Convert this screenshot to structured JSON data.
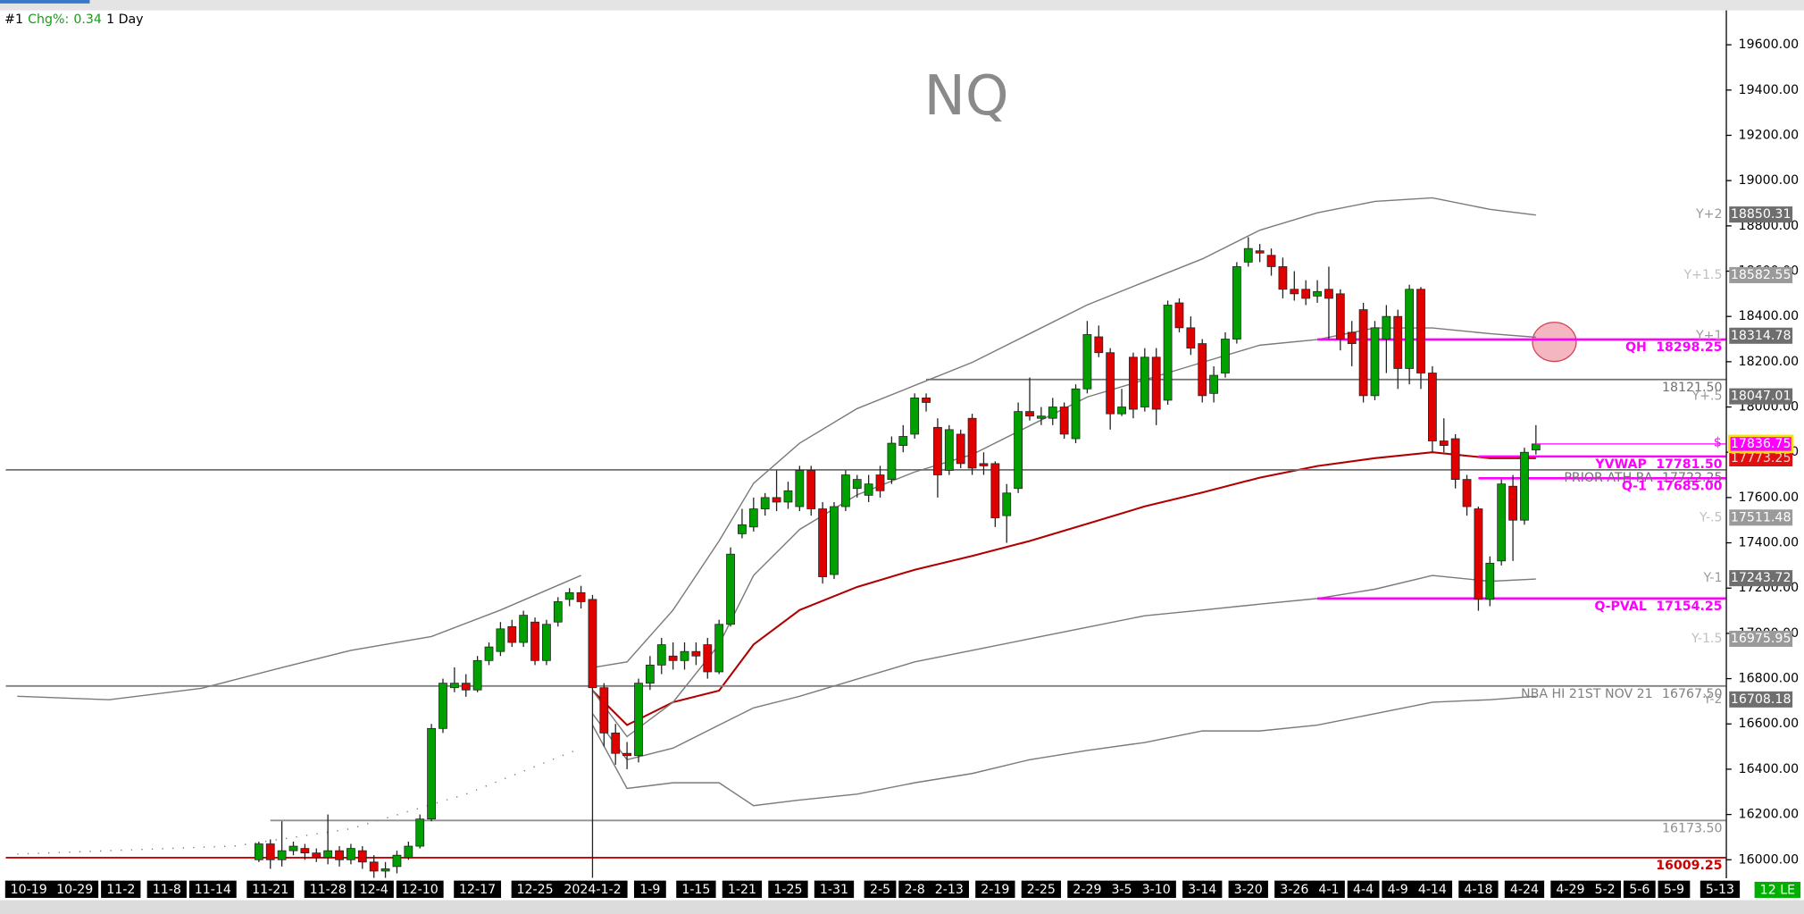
{
  "header": {
    "id": "#1",
    "change_label": "Chg%:",
    "change": 0.34,
    "interval": "1 Day"
  },
  "footer": {
    "badge": "12 LE"
  },
  "chart_data": {
    "type": "candlestick",
    "title": "NQ",
    "up_color": "#00a000",
    "down_color": "#e00000",
    "ylim": [
      15918,
      19747
    ],
    "yticks": [
      {
        "value": 16000,
        "label": "16000.00"
      },
      {
        "value": 16200,
        "label": "16200.00"
      },
      {
        "value": 16400,
        "label": "16400.00"
      },
      {
        "value": 16600,
        "label": "16600.00"
      },
      {
        "value": 16800,
        "label": "16800.00"
      },
      {
        "value": 17000,
        "label": "17000.00"
      },
      {
        "value": 17200,
        "label": "17200.00"
      },
      {
        "value": 17400,
        "label": "17400.00"
      },
      {
        "value": 17600,
        "label": "17600.00"
      },
      {
        "value": 17800,
        "label": "17800.00"
      },
      {
        "value": 18000,
        "label": "18000.00"
      },
      {
        "value": 18200,
        "label": "18200.00"
      },
      {
        "value": 18400,
        "label": "18400.00"
      },
      {
        "value": 18600,
        "label": "18600.00"
      },
      {
        "value": 18800,
        "label": "18800.00"
      },
      {
        "value": 19000,
        "label": "19000.00"
      },
      {
        "value": 19200,
        "label": "19200.00"
      },
      {
        "value": 19400,
        "label": "19400.00"
      },
      {
        "value": 19600,
        "label": "19600.00"
      }
    ],
    "categories": [
      null,
      null,
      "10-19",
      null,
      null,
      null,
      "10-29",
      null,
      null,
      null,
      "11-2",
      null,
      null,
      null,
      "11-8",
      null,
      null,
      null,
      "11-14",
      null,
      null,
      null,
      null,
      "11-21",
      null,
      null,
      null,
      null,
      "11-28",
      null,
      null,
      null,
      "12-4",
      null,
      null,
      null,
      "12-10",
      null,
      null,
      null,
      null,
      "12-17",
      null,
      null,
      null,
      null,
      "12-25",
      null,
      null,
      null,
      null,
      "2024-1-2",
      null,
      null,
      null,
      null,
      "1-9",
      null,
      null,
      null,
      "1-15",
      null,
      null,
      null,
      "1-21",
      null,
      null,
      null,
      "1-25",
      null,
      null,
      null,
      "1-31",
      null,
      null,
      null,
      "2-5",
      null,
      null,
      "2-8",
      null,
      null,
      "2-13",
      null,
      null,
      null,
      "2-19",
      null,
      null,
      null,
      "2-25",
      null,
      null,
      null,
      "2-29",
      null,
      null,
      "3-5",
      null,
      null,
      "3-10",
      null,
      null,
      null,
      "3-14",
      null,
      null,
      null,
      "3-20",
      null,
      null,
      null,
      "3-26",
      null,
      null,
      "4-1",
      null,
      null,
      "4-4",
      null,
      null,
      "4-9",
      null,
      null,
      "4-14",
      null,
      null,
      null,
      "4-18",
      null,
      null,
      null,
      "4-24",
      null,
      null,
      null,
      "4-29",
      null,
      null,
      "5-2",
      null,
      null,
      "5-6",
      null,
      null,
      "5-9",
      null,
      null,
      null,
      "5-13"
    ],
    "open": [
      null,
      null,
      null,
      null,
      null,
      null,
      null,
      null,
      null,
      null,
      null,
      null,
      null,
      null,
      null,
      null,
      null,
      null,
      null,
      null,
      null,
      null,
      16000,
      16070,
      16000,
      16040,
      16050,
      16030,
      16010,
      16040,
      16000,
      16040,
      15990,
      15950,
      15970,
      16010,
      16060,
      16180,
      16580,
      16760,
      16780,
      16750,
      16880,
      16920,
      17030,
      16960,
      17050,
      16880,
      17050,
      17150,
      17180,
      17150,
      16760,
      16560,
      16470,
      16460,
      16780,
      16860,
      16900,
      16880,
      16920,
      16950,
      16830,
      17040,
      17440,
      17470,
      17550,
      17600,
      17580,
      17560,
      17720,
      17550,
      17260,
      17560,
      17640,
      17610,
      17700,
      17680,
      17830,
      17880,
      18040,
      17910,
      17720,
      17880,
      17950,
      17750,
      17750,
      17520,
      17640,
      17980,
      17950,
      17950,
      18000,
      17860,
      18080,
      18310,
      18240,
      17970,
      18220,
      18000,
      18220,
      18030,
      18460,
      18350,
      18280,
      18060,
      18150,
      18300,
      18640,
      18690,
      18670,
      18620,
      18520,
      18520,
      18490,
      18520,
      18500,
      18330,
      18430,
      18050,
      18300,
      18400,
      18170,
      18520,
      18150,
      17850,
      17860,
      17680,
      17550,
      17150,
      17320,
      17650,
      17500,
      17810,
      null,
      null,
      null,
      null,
      null,
      null,
      null,
      null,
      null,
      null,
      null,
      null,
      null,
      null,
      null,
      null
    ],
    "high": [
      null,
      null,
      null,
      null,
      null,
      null,
      null,
      null,
      null,
      null,
      null,
      null,
      null,
      null,
      null,
      null,
      null,
      null,
      null,
      null,
      null,
      null,
      16080,
      16090,
      16170,
      16080,
      16070,
      16050,
      16200,
      16060,
      16070,
      16060,
      16020,
      15990,
      16040,
      16080,
      16200,
      16600,
      16800,
      16850,
      16820,
      16900,
      16960,
      17050,
      17060,
      17100,
      17070,
      17060,
      17160,
      17200,
      17210,
      17170,
      16780,
      16600,
      16520,
      16800,
      16900,
      16980,
      16960,
      16960,
      16960,
      16980,
      17060,
      17380,
      17550,
      17600,
      17620,
      17720,
      17670,
      17740,
      17740,
      17580,
      17580,
      17720,
      17700,
      17700,
      17740,
      17870,
      17920,
      18060,
      18060,
      17950,
      17920,
      17900,
      17970,
      17800,
      17760,
      17660,
      18020,
      18130,
      18000,
      18040,
      18020,
      18100,
      18380,
      18360,
      18260,
      18080,
      18240,
      18260,
      18260,
      18470,
      18480,
      18400,
      18300,
      18180,
      18330,
      18640,
      18750,
      18720,
      18700,
      18660,
      18600,
      18560,
      18560,
      18620,
      18520,
      18380,
      18460,
      18380,
      18450,
      18430,
      18540,
      18530,
      18180,
      17950,
      17880,
      17700,
      17560,
      17340,
      17680,
      17700,
      17820,
      17920,
      null,
      null,
      null,
      null,
      null,
      null,
      null,
      null,
      null,
      null,
      null,
      null,
      null,
      null,
      null,
      null
    ],
    "low": [
      null,
      null,
      null,
      null,
      null,
      null,
      null,
      null,
      null,
      null,
      null,
      null,
      null,
      null,
      null,
      null,
      null,
      null,
      null,
      null,
      null,
      null,
      15990,
      15960,
      15970,
      16020,
      16000,
      15990,
      15980,
      15970,
      15980,
      15960,
      15920,
      15920,
      15940,
      16000,
      16050,
      16170,
      16560,
      16740,
      16720,
      16740,
      16860,
      16900,
      16940,
      16940,
      16860,
      16860,
      17030,
      17120,
      17110,
      15920,
      16500,
      16420,
      16400,
      16430,
      16750,
      16820,
      16840,
      16840,
      16860,
      16800,
      16820,
      17030,
      17420,
      17450,
      17520,
      17540,
      17550,
      17540,
      17520,
      17220,
      17240,
      17540,
      17600,
      17580,
      17600,
      17660,
      17800,
      17860,
      17980,
      17600,
      17700,
      17730,
      17700,
      17700,
      17470,
      17400,
      17620,
      17940,
      17920,
      17920,
      17860,
      17840,
      18060,
      18220,
      17900,
      17960,
      17950,
      17980,
      17920,
      18010,
      18330,
      18230,
      18020,
      18020,
      18130,
      18280,
      18620,
      18640,
      18580,
      18480,
      18470,
      18450,
      18460,
      18300,
      18250,
      18180,
      18020,
      18030,
      18150,
      18080,
      18100,
      18080,
      17800,
      17800,
      17640,
      17520,
      17100,
      17120,
      17300,
      17320,
      17480,
      17790,
      null,
      null,
      null,
      null,
      null,
      null,
      null,
      null,
      null,
      null,
      null,
      null,
      null,
      null,
      null,
      null
    ],
    "close": [
      null,
      null,
      null,
      null,
      null,
      null,
      null,
      null,
      null,
      null,
      null,
      null,
      null,
      null,
      null,
      null,
      null,
      null,
      null,
      null,
      null,
      null,
      16070,
      16000,
      16040,
      16060,
      16030,
      16010,
      16040,
      16000,
      16050,
      15990,
      15950,
      15960,
      16020,
      16060,
      16180,
      16580,
      16780,
      16780,
      16750,
      16880,
      16940,
      17020,
      16960,
      17080,
      16880,
      17040,
      17140,
      17180,
      17140,
      16760,
      16560,
      16470,
      16460,
      16780,
      16860,
      16950,
      16880,
      16920,
      16900,
      16830,
      17040,
      17350,
      17480,
      17550,
      17600,
      17580,
      17630,
      17720,
      17550,
      17250,
      17560,
      17700,
      17680,
      17660,
      17630,
      17840,
      17870,
      18040,
      18020,
      17700,
      17900,
      17750,
      17730,
      17740,
      17510,
      17620,
      17980,
      17960,
      17960,
      18000,
      17880,
      18080,
      18320,
      18240,
      17970,
      18000,
      17990,
      18220,
      17990,
      18450,
      18350,
      18260,
      18050,
      18140,
      18300,
      18620,
      18700,
      18680,
      18620,
      18520,
      18500,
      18480,
      18510,
      18480,
      18300,
      18280,
      18050,
      18350,
      18400,
      18170,
      18520,
      18150,
      17850,
      17830,
      17680,
      17560,
      17150,
      17310,
      17660,
      17500,
      17800,
      17836.75,
      null,
      null,
      null,
      null,
      null,
      null,
      null,
      null,
      null,
      null,
      null,
      null,
      null,
      null,
      null,
      null
    ],
    "bands": [
      {
        "name": "Y+2",
        "value": 18850.31,
        "color": "#6e6e6e",
        "x": [
          51,
          54,
          58,
          62,
          65,
          69,
          74,
          79,
          84,
          89,
          94,
          99,
          104,
          109,
          114,
          119,
          124,
          129,
          133
        ],
        "values": [
          16849,
          16874,
          17103,
          17408,
          17663,
          17840,
          17993,
          18095,
          18197,
          18324,
          18451,
          18553,
          18654,
          18781,
          18858,
          18908,
          18924,
          18873,
          18848
        ]
      },
      {
        "name": "Y+1.5",
        "value": 18582.55,
        "color": "#9a9a9a"
      },
      {
        "name": "Y+1",
        "value": 18314.78,
        "color": "#6e6e6e",
        "x": [
          51,
          54,
          58,
          62,
          65,
          69,
          74,
          79,
          84,
          89,
          94,
          99,
          104,
          109,
          114,
          119,
          124,
          129,
          133
        ],
        "values": [
          16747,
          16544,
          16696,
          16951,
          17256,
          17459,
          17612,
          17713,
          17790,
          17917,
          18044,
          18120,
          18197,
          18273,
          18298,
          18349,
          18349,
          18324,
          18308
        ]
      },
      {
        "name": "Y+.5",
        "value": 18047.01,
        "color": "#6e6e6e"
      },
      {
        "name": "Y-.5",
        "value": 17511.48,
        "color": "#9a9a9a"
      },
      {
        "name": "Y-1",
        "value": 17243.72,
        "color": "#6e6e6e",
        "x": [
          51,
          54,
          58,
          62,
          65,
          69,
          74,
          79,
          84,
          89,
          94,
          99,
          104,
          109,
          114,
          119,
          124,
          129,
          133
        ],
        "values": [
          16645,
          16442,
          16493,
          16595,
          16671,
          16722,
          16798,
          16874,
          16925,
          16976,
          17027,
          17078,
          17103,
          17129,
          17154,
          17195,
          17256,
          17230,
          17240
        ]
      },
      {
        "name": "Y-1.5",
        "value": 16975.95,
        "color": "#9a9a9a"
      },
      {
        "name": "Y-2",
        "value": 16708.18,
        "color": "#6e6e6e",
        "x": [
          51,
          54,
          58,
          62,
          65,
          69,
          74,
          79,
          84,
          89,
          94,
          99,
          104,
          109,
          114,
          119,
          124,
          129,
          133
        ],
        "values": [
          16595,
          16315,
          16340,
          16340,
          16239,
          16264,
          16290,
          16340,
          16381,
          16442,
          16483,
          16518,
          16569,
          16569,
          16595,
          16645,
          16696,
          16707,
          16722
        ]
      }
    ],
    "curves": [
      {
        "color": "#7a7a7a",
        "dashed": false,
        "x": [
          1,
          9,
          17,
          24,
          30,
          37,
          43,
          50
        ],
        "values": [
          16722,
          16707,
          16757,
          16849,
          16925,
          16986,
          17103,
          17256
        ]
      },
      {
        "color": "#7a7a7a",
        "dashed": true,
        "x": [
          1,
          20,
          30,
          40,
          50
        ],
        "values": [
          16025,
          16061,
          16137,
          16290,
          16493
        ]
      },
      {
        "color": "#b00000",
        "dashed": false,
        "x": [
          51,
          54,
          58,
          62,
          65,
          69,
          74,
          79,
          84,
          89,
          94,
          99,
          104,
          109,
          114,
          119,
          124,
          129,
          133
        ],
        "values": [
          16747,
          16595,
          16696,
          16747,
          16951,
          17103,
          17205,
          17281,
          17342,
          17408,
          17484,
          17561,
          17622,
          17688,
          17739,
          17774,
          17800,
          17774,
          17774
        ]
      }
    ],
    "levels": [
      {
        "name": "QH",
        "value": 18298.25,
        "color": "#ff00ff",
        "start": 114
      },
      {
        "value": {
          "value": 18121.5,
          "label": "18121.50"
        },
        "color": "#707070",
        "start": 80
      },
      {
        "name": "YVWAP",
        "value": {
          "value": 17781.5,
          "label": "17781.50"
        },
        "color": "#ff00ff",
        "start": 128
      },
      {
        "name": "PRIOR ATH RA",
        "value": 17722.25,
        "color": "#707070",
        "start": 0
      },
      {
        "name": "Q-1",
        "value": {
          "value": 17685,
          "label": "17685.00"
        },
        "color": "#ff00ff",
        "start": 128
      },
      {
        "name": "Q-PVAL",
        "value": 17154.25,
        "color": "#ff00ff",
        "start": 114
      },
      {
        "name": "NBA HI 21ST NOV 21",
        "value": {
          "value": 16767.5,
          "label": "16767.50"
        },
        "color": "#808080",
        "start": 0
      },
      {
        "value": {
          "value": 16173.5,
          "label": "16173.50"
        },
        "color": "#909090",
        "start": 23
      },
      {
        "value": 16009.25,
        "color": "#cc0000",
        "start": 0
      }
    ],
    "last_price": 17836.75,
    "last_price_marker": "$",
    "ma_value": 17773.25
  }
}
